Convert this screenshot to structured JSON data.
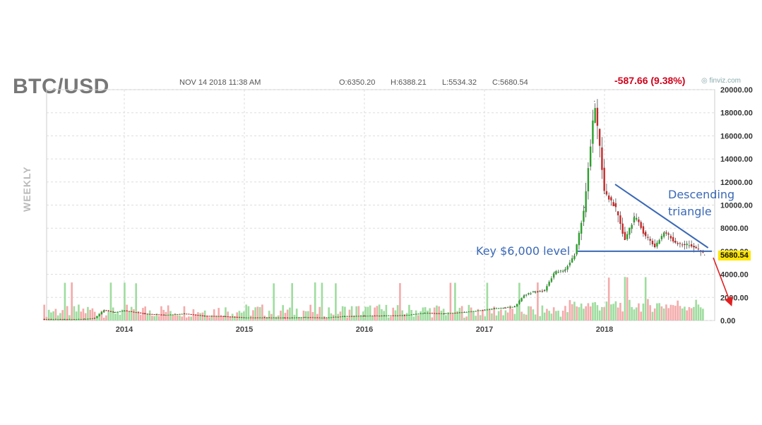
{
  "header": {
    "symbol": "BTC/USD",
    "datetime": "NOV 14 2018 11:38 AM",
    "open": "O:6350.20",
    "high": "H:6388.21",
    "low": "L:5534.32",
    "close": "C:5680.54",
    "change": "-587.66 (9.38%)",
    "brand": "finviz.com",
    "frequency": "WEEKLY"
  },
  "annotations": {
    "key_level": "Key $6,000 level",
    "pattern_line1": "Descending",
    "pattern_line2": "triangle"
  },
  "colors": {
    "up": "#2ca02c",
    "down": "#c62828",
    "vol_up": "#9fdc9f",
    "vol_down": "#f4aaaa",
    "annotation": "#3b69b6",
    "arrow": "#e02020",
    "last_price_bg": "#ffe600"
  },
  "chart_data": {
    "type": "line",
    "title": "BTC/USD",
    "frequency": "WEEKLY",
    "xlabel": "",
    "ylabel": "",
    "ylim": [
      0,
      20000
    ],
    "y_ticks": [
      "20000.00",
      "18000.00",
      "16000.00",
      "14000.00",
      "12000.00",
      "10000.00",
      "8000.00",
      "6000.00",
      "4000.00",
      "2000.00",
      "0.00"
    ],
    "x_ticks": [
      "2014",
      "2015",
      "2016",
      "2017",
      "2018"
    ],
    "last_price": "5680.54",
    "grid": true,
    "series": [
      {
        "x": [
          "2013-05",
          "2013-07",
          "2013-09",
          "2013-10",
          "2013-11",
          "2013-12",
          "2014-01",
          "2014-03",
          "2014-05",
          "2014-07",
          "2014-09",
          "2014-11",
          "2015-01",
          "2015-03",
          "2015-05",
          "2015-07",
          "2015-09",
          "2015-11",
          "2016-01",
          "2016-03",
          "2016-05",
          "2016-07",
          "2016-09",
          "2016-11",
          "2017-01",
          "2017-02",
          "2017-03",
          "2017-04",
          "2017-05",
          "2017-06",
          "2017-07",
          "2017-08",
          "2017-09",
          "2017-10",
          "2017-11",
          "2017-12",
          "2018-01",
          "2018-02",
          "2018-03",
          "2018-04",
          "2018-05",
          "2018-06",
          "2018-07",
          "2018-08",
          "2018-09",
          "2018-10",
          "2018-11"
        ],
        "values": [
          120,
          100,
          130,
          200,
          900,
          700,
          850,
          600,
          480,
          600,
          400,
          370,
          250,
          260,
          240,
          280,
          240,
          370,
          400,
          420,
          450,
          650,
          600,
          730,
          920,
          1050,
          1100,
          1200,
          2200,
          2500,
          2600,
          4200,
          4300,
          5700,
          9800,
          19000,
          11000,
          10000,
          7000,
          9000,
          7500,
          6400,
          7700,
          6800,
          6600,
          6400,
          5680
        ]
      }
    ],
    "trendlines": [
      {
        "label": "Key $6,000 level",
        "type": "horizontal",
        "value": 6000
      },
      {
        "label": "Descending triangle",
        "from": [
          "2018-01",
          11800
        ],
        "to": [
          "2018-11",
          6300
        ]
      }
    ]
  }
}
